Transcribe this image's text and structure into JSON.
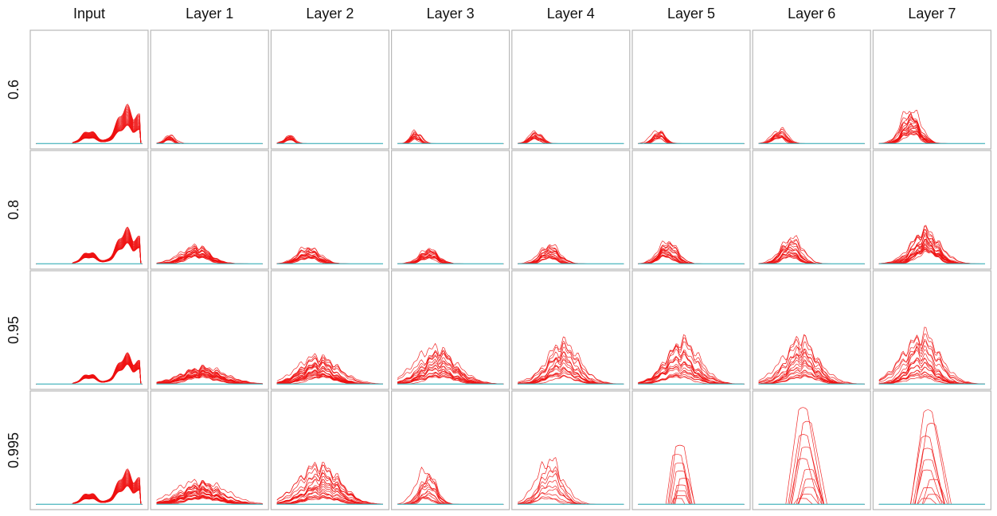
{
  "chart_data": {
    "type": "line",
    "title": "",
    "columns": [
      "Input",
      "Layer 1",
      "Layer 2",
      "Layer 3",
      "Layer 4",
      "Layer 5",
      "Layer 6",
      "Layer 7"
    ],
    "rows": [
      "0.6",
      "0.8",
      "0.95",
      "0.995"
    ],
    "line_color": "#ee1111",
    "baseline_color": "#5bbcc4",
    "grid": false,
    "x_range": [
      0,
      1
    ],
    "y_range": [
      0,
      1
    ],
    "panels": [
      [
        {
          "shape": "input",
          "x0": 0.35,
          "x1": 0.98,
          "h": [
            0.14,
            0.3
          ],
          "n": 24
        },
        {
          "shape": "bump",
          "c": 0.12,
          "w": 0.06,
          "h": [
            0.03,
            0.07
          ],
          "n": 14
        },
        {
          "shape": "bump",
          "c": 0.12,
          "w": 0.06,
          "h": [
            0.03,
            0.07
          ],
          "n": 14
        },
        {
          "shape": "bump",
          "c": 0.17,
          "w": 0.06,
          "h": [
            0.04,
            0.11
          ],
          "n": 14
        },
        {
          "shape": "bump",
          "c": 0.17,
          "w": 0.07,
          "h": [
            0.04,
            0.1
          ],
          "n": 14
        },
        {
          "shape": "bump",
          "c": 0.2,
          "w": 0.08,
          "h": [
            0.05,
            0.11
          ],
          "n": 14
        },
        {
          "shape": "bump",
          "c": 0.2,
          "w": 0.08,
          "h": [
            0.05,
            0.12
          ],
          "n": 14
        },
        {
          "shape": "bump",
          "c": 0.3,
          "w": 0.11,
          "h": [
            0.08,
            0.28
          ],
          "n": 20
        }
      ],
      [
        {
          "shape": "input",
          "x0": 0.35,
          "x1": 0.98,
          "h": [
            0.16,
            0.28
          ],
          "n": 24
        },
        {
          "shape": "bump",
          "c": 0.38,
          "w": 0.18,
          "h": [
            0.06,
            0.15
          ],
          "n": 20
        },
        {
          "shape": "bump",
          "c": 0.3,
          "w": 0.13,
          "h": [
            0.05,
            0.14
          ],
          "n": 18
        },
        {
          "shape": "bump",
          "c": 0.3,
          "w": 0.11,
          "h": [
            0.05,
            0.13
          ],
          "n": 18
        },
        {
          "shape": "bump",
          "c": 0.3,
          "w": 0.11,
          "h": [
            0.05,
            0.16
          ],
          "n": 18
        },
        {
          "shape": "bump",
          "c": 0.28,
          "w": 0.11,
          "h": [
            0.06,
            0.19
          ],
          "n": 18
        },
        {
          "shape": "bump",
          "c": 0.3,
          "w": 0.12,
          "h": [
            0.06,
            0.22
          ],
          "n": 18
        },
        {
          "shape": "bump",
          "c": 0.45,
          "w": 0.16,
          "h": [
            0.1,
            0.29
          ],
          "n": 22
        }
      ],
      [
        {
          "shape": "input",
          "x0": 0.35,
          "x1": 0.98,
          "h": [
            0.15,
            0.24
          ],
          "n": 24
        },
        {
          "shape": "bump",
          "c": 0.42,
          "w": 0.24,
          "h": [
            0.06,
            0.14
          ],
          "n": 24
        },
        {
          "shape": "bump",
          "c": 0.4,
          "w": 0.22,
          "h": [
            0.06,
            0.23
          ],
          "n": 24
        },
        {
          "shape": "bump",
          "c": 0.38,
          "w": 0.22,
          "h": [
            0.06,
            0.3
          ],
          "n": 20
        },
        {
          "shape": "bump",
          "c": 0.42,
          "w": 0.2,
          "h": [
            0.06,
            0.35
          ],
          "n": 18
        },
        {
          "shape": "bump",
          "c": 0.4,
          "w": 0.2,
          "h": [
            0.06,
            0.37
          ],
          "n": 18
        },
        {
          "shape": "bump",
          "c": 0.4,
          "w": 0.2,
          "h": [
            0.06,
            0.39
          ],
          "n": 18
        },
        {
          "shape": "bump",
          "c": 0.4,
          "w": 0.2,
          "h": [
            0.06,
            0.42
          ],
          "n": 18
        }
      ],
      [
        {
          "shape": "input",
          "x0": 0.35,
          "x1": 0.98,
          "h": [
            0.14,
            0.27
          ],
          "n": 24
        },
        {
          "shape": "bump",
          "c": 0.42,
          "w": 0.24,
          "h": [
            0.05,
            0.19
          ],
          "n": 24
        },
        {
          "shape": "bump",
          "c": 0.42,
          "w": 0.22,
          "h": [
            0.05,
            0.33
          ],
          "n": 20
        },
        {
          "shape": "bump",
          "c": 0.28,
          "w": 0.1,
          "h": [
            0.05,
            0.28
          ],
          "n": 14
        },
        {
          "shape": "bump",
          "c": 0.3,
          "w": 0.14,
          "h": [
            0.05,
            0.38
          ],
          "n": 10
        },
        {
          "shape": "tri",
          "c": 0.4,
          "w": 0.25,
          "h": [
            0.05,
            0.5
          ],
          "n": 9
        },
        {
          "shape": "tri",
          "c": 0.45,
          "w": 0.36,
          "h": [
            0.05,
            0.82
          ],
          "n": 10
        },
        {
          "shape": "tri",
          "c": 0.48,
          "w": 0.36,
          "h": [
            0.05,
            0.8
          ],
          "n": 10
        }
      ]
    ]
  }
}
